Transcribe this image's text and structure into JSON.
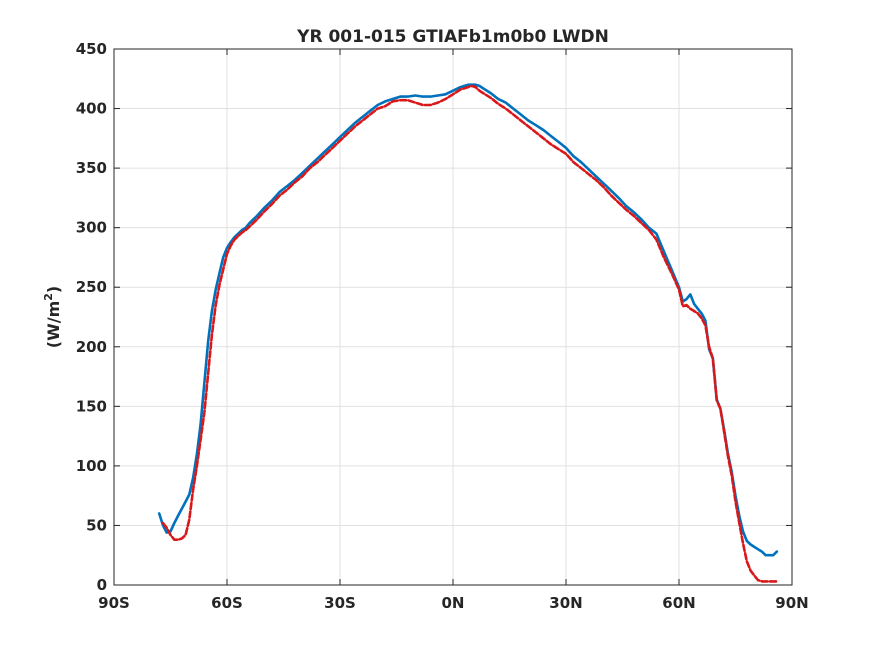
{
  "chart_data": {
    "type": "line",
    "title": "YR 001-015 GTIAFb1m0b0 LWDN",
    "xlabel": "",
    "ylabel": "(W/m2)",
    "ylabel_base": "(W/m",
    "ylabel_sup": "2",
    "ylabel_close": ")",
    "xlim": [
      -90,
      90
    ],
    "ylim": [
      0,
      450
    ],
    "grid": true,
    "x_ticks": [
      -90,
      -60,
      -30,
      0,
      30,
      60,
      90
    ],
    "x_tick_labels": [
      "90S",
      "60S",
      "30S",
      "0N",
      "30N",
      "60N",
      "90N"
    ],
    "y_ticks": [
      0,
      50,
      100,
      150,
      200,
      250,
      300,
      350,
      400,
      450
    ],
    "y_tick_labels": [
      "0",
      "50",
      "100",
      "150",
      "200",
      "250",
      "300",
      "350",
      "400",
      "450"
    ],
    "series": [
      {
        "color": "#0072BD",
        "style": "solid",
        "x": [
          -78,
          -77,
          -76,
          -75,
          -74,
          -73,
          -72,
          -71,
          -70,
          -69,
          -68,
          -67,
          -66,
          -65,
          -64,
          -63,
          -62,
          -61,
          -60,
          -59,
          -58,
          -57,
          -56,
          -55,
          -54,
          -52,
          -50,
          -48,
          -46,
          -44,
          -42,
          -40,
          -38,
          -36,
          -34,
          -32,
          -30,
          -28,
          -26,
          -24,
          -22,
          -20,
          -18,
          -16,
          -14,
          -12,
          -10,
          -8,
          -6,
          -4,
          -2,
          0,
          2,
          4,
          5,
          6,
          7,
          8,
          10,
          12,
          14,
          16,
          18,
          20,
          22,
          24,
          26,
          28,
          30,
          32,
          34,
          36,
          38,
          40,
          42,
          44,
          46,
          48,
          50,
          52,
          54,
          56,
          58,
          60,
          61,
          62,
          63,
          64,
          65,
          66,
          67,
          68,
          69,
          70,
          71,
          72,
          73,
          74,
          75,
          76,
          77,
          78,
          79,
          80,
          81,
          82,
          83,
          84,
          85,
          86
        ],
        "y": [
          60,
          50,
          44,
          45,
          52,
          58,
          64,
          70,
          76,
          90,
          110,
          135,
          170,
          205,
          230,
          248,
          262,
          275,
          283,
          288,
          292,
          295,
          298,
          300,
          304,
          310,
          317,
          323,
          330,
          335,
          340,
          346,
          352,
          358,
          364,
          370,
          376,
          382,
          388,
          393,
          398,
          403,
          406,
          408,
          410,
          410,
          411,
          410,
          410,
          411,
          412,
          415,
          418,
          420,
          420,
          420,
          419,
          417,
          413,
          408,
          405,
          400,
          395,
          390,
          386,
          382,
          377,
          372,
          367,
          360,
          355,
          349,
          343,
          337,
          331,
          325,
          318,
          313,
          307,
          300,
          295,
          280,
          265,
          250,
          238,
          240,
          244,
          236,
          232,
          228,
          222,
          198,
          190,
          156,
          148,
          130,
          110,
          95,
          75,
          58,
          45,
          37,
          34,
          32,
          30,
          28,
          25,
          25,
          25,
          28
        ]
      },
      {
        "color": "#D9181A",
        "style": "dashed",
        "x": [
          -77,
          -76,
          -75,
          -74,
          -73,
          -72,
          -71,
          -70,
          -69,
          -68,
          -67,
          -66,
          -65,
          -64,
          -63,
          -62,
          -61,
          -60,
          -59,
          -58,
          -57,
          -56,
          -55,
          -54,
          -52,
          -50,
          -48,
          -46,
          -44,
          -42,
          -40,
          -38,
          -36,
          -34,
          -32,
          -30,
          -28,
          -26,
          -24,
          -22,
          -20,
          -18,
          -16,
          -14,
          -12,
          -10,
          -8,
          -6,
          -4,
          -2,
          0,
          2,
          4,
          5,
          6,
          7,
          8,
          10,
          12,
          14,
          16,
          18,
          20,
          22,
          24,
          26,
          28,
          30,
          32,
          34,
          36,
          38,
          40,
          42,
          44,
          46,
          48,
          50,
          52,
          54,
          56,
          58,
          60,
          61,
          62,
          63,
          64,
          65,
          66,
          67,
          68,
          69,
          70,
          71,
          72,
          73,
          74,
          75,
          76,
          77,
          78,
          79,
          80,
          81,
          82,
          83,
          84,
          85,
          86
        ],
        "y": [
          52,
          48,
          42,
          38,
          38,
          39,
          42,
          55,
          80,
          100,
          122,
          145,
          178,
          210,
          235,
          252,
          265,
          278,
          285,
          290,
          293,
          296,
          298,
          301,
          307,
          314,
          320,
          327,
          332,
          338,
          343,
          350,
          355,
          361,
          367,
          373,
          379,
          385,
          390,
          395,
          400,
          402,
          406,
          407,
          407,
          405,
          403,
          403,
          405,
          408,
          412,
          416,
          418,
          419,
          418,
          415,
          413,
          409,
          404,
          400,
          395,
          390,
          385,
          380,
          375,
          370,
          366,
          362,
          355,
          350,
          345,
          340,
          334,
          327,
          321,
          315,
          310,
          304,
          298,
          290,
          275,
          262,
          248,
          234,
          235,
          232,
          230,
          228,
          224,
          218,
          200,
          190,
          155,
          148,
          128,
          108,
          92,
          70,
          52,
          35,
          20,
          12,
          8,
          4,
          3,
          3,
          3,
          3,
          3
        ]
      }
    ]
  }
}
